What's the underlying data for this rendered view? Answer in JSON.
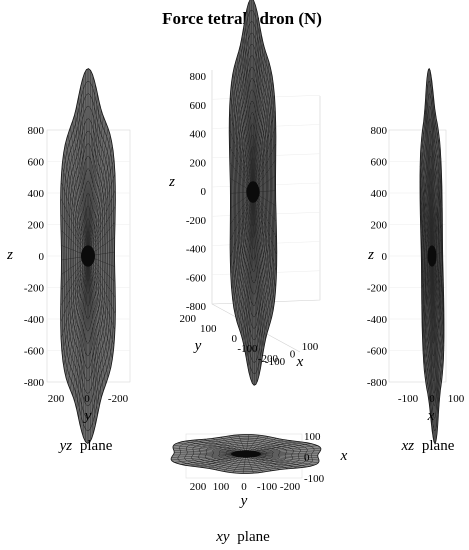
{
  "figure": {
    "title": "Force tetrahedron (N)"
  },
  "chart_data": [
    {
      "type": "surface",
      "name": "yz-view",
      "caption_var": "yz",
      "caption_word": "plane",
      "xlabel": "y",
      "ylabel": "z",
      "xticks": [
        "200",
        "0",
        "-200"
      ],
      "yticks": [
        "800",
        "600",
        "400",
        "200",
        "0",
        "-200",
        "-400",
        "-600",
        "-800"
      ],
      "ylim": [
        -800,
        800
      ],
      "xlim": [
        250,
        -250
      ]
    },
    {
      "type": "surface",
      "name": "isometric-view",
      "zlabel": "z",
      "xlabel": "x",
      "ylabel": "y",
      "zticks": [
        "800",
        "600",
        "400",
        "200",
        "0",
        "-200",
        "-400",
        "-600",
        "-800"
      ],
      "yticks": [
        "200",
        "100",
        "0",
        "-100",
        "-200"
      ],
      "xticks": [
        "100",
        "0",
        "-100"
      ],
      "zlim": [
        -800,
        800
      ]
    },
    {
      "type": "surface",
      "name": "xz-view",
      "caption_var": "xz",
      "caption_word": "plane",
      "xlabel": "x",
      "ylabel": "z",
      "xticks": [
        "-100",
        "0",
        "100"
      ],
      "yticks": [
        "800",
        "600",
        "400",
        "200",
        "0",
        "-200",
        "-400",
        "-600",
        "-800"
      ],
      "ylim": [
        -800,
        800
      ],
      "xlim": [
        -100,
        100
      ]
    },
    {
      "type": "surface",
      "name": "xy-view",
      "caption_var": "xy",
      "caption_word": "plane",
      "xlabel": "y",
      "ylabel": "x",
      "xticks": [
        "200",
        "100",
        "0",
        "-100",
        "-200"
      ],
      "yticks": [
        "100",
        "0",
        "-100"
      ],
      "xlim": [
        250,
        -250
      ],
      "ylim": [
        -100,
        100
      ]
    }
  ]
}
